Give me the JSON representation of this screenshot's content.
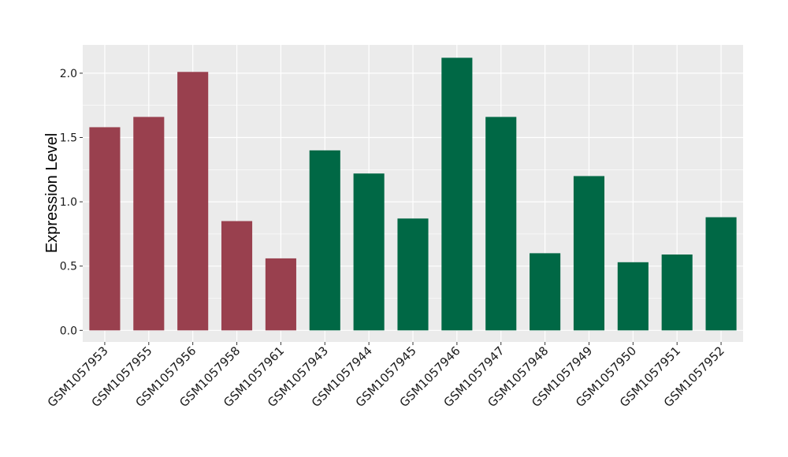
{
  "chart_data": {
    "type": "bar",
    "title": "",
    "xlabel": "",
    "ylabel": "Expression Level",
    "ylim": [
      -0.09,
      2.22
    ],
    "yticks": [
      0.0,
      0.5,
      1.0,
      1.5,
      2.0
    ],
    "ytick_labels": [
      "0.0",
      "0.5",
      "1.0",
      "1.5",
      "2.0"
    ],
    "grid": true,
    "legend": "none",
    "categories": [
      "GSM1057953",
      "GSM1057955",
      "GSM1057956",
      "GSM1057958",
      "GSM1057961",
      "GSM1057943",
      "GSM1057944",
      "GSM1057945",
      "GSM1057946",
      "GSM1057947",
      "GSM1057948",
      "GSM1057949",
      "GSM1057950",
      "GSM1057951",
      "GSM1057952"
    ],
    "values": [
      1.58,
      1.66,
      2.01,
      0.85,
      0.56,
      1.4,
      1.22,
      0.87,
      2.12,
      1.66,
      0.6,
      1.2,
      0.53,
      0.59,
      0.88
    ],
    "groups": [
      0,
      0,
      0,
      0,
      0,
      1,
      1,
      1,
      1,
      1,
      1,
      1,
      1,
      1,
      1
    ],
    "group_colors": [
      "#99404e",
      "#006845"
    ],
    "panel_background": "#ebebeb",
    "grid_color": "#ffffff"
  }
}
